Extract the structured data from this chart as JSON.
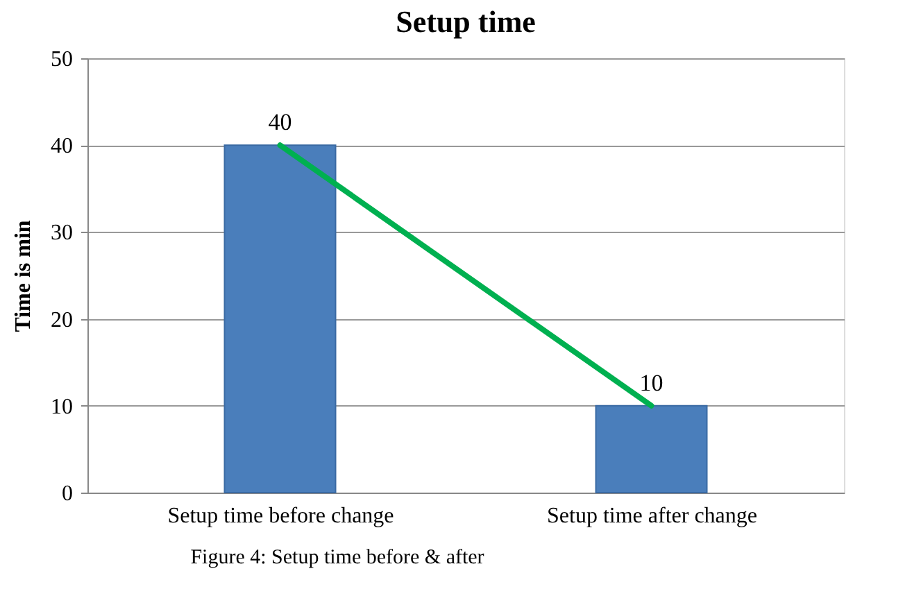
{
  "chart_data": {
    "type": "bar",
    "title": "Setup time",
    "ylabel": "Time is min",
    "categories": [
      "Setup time before change",
      "Setup time after change"
    ],
    "series": [
      {
        "color": "#4a7ebb",
        "values": [
          40,
          10
        ],
        "value_labels": [
          "40",
          "10"
        ]
      },
      {
        "type": "line",
        "color": "#00b050",
        "values": [
          40,
          10
        ]
      }
    ],
    "ylim": [
      0,
      50
    ],
    "yticks": [
      0,
      10,
      20,
      30,
      40,
      50
    ],
    "grid": "y",
    "legend": false,
    "marker": "none",
    "line_style": "solid",
    "annotations": [
      "Figure 4: Setup time before & after"
    ]
  }
}
